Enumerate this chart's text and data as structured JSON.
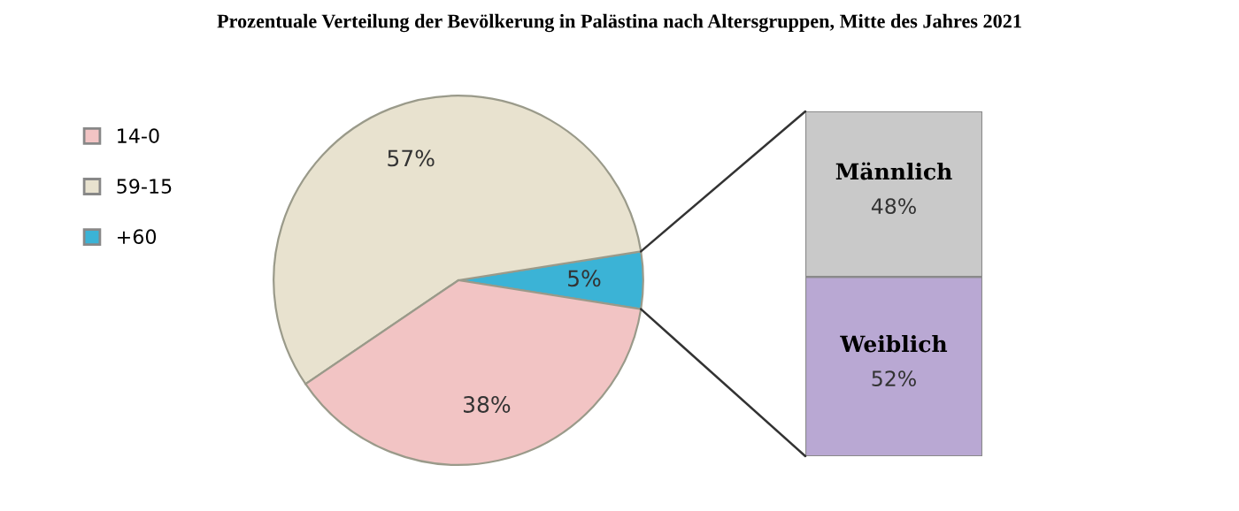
{
  "chart_data": [
    {
      "type": "pie",
      "title": "Prozentuale Verteilung der Bevölkerung in Palästina nach Altersgruppen, Mitte des Jahres 2021",
      "categories": [
        "+60",
        "59-15",
        "14-0"
      ],
      "values": [
        5,
        57,
        38
      ],
      "colors": [
        "#3bb3d6",
        "#e8e2cf",
        "#f2c4c4"
      ],
      "value_labels": [
        "5%",
        "57%",
        "38%"
      ],
      "legend": "left"
    },
    {
      "type": "bar",
      "stacked": true,
      "categories": [
        null
      ],
      "tick_labels": false,
      "series": [
        {
          "name": "Weiblich",
          "color": "#b9a8d3",
          "values": [
            52
          ],
          "value_labels": [
            "52%"
          ]
        },
        {
          "name": "Männlich",
          "color": "#c9c9c9",
          "values": [
            48
          ],
          "value_labels": [
            "48%"
          ]
        }
      ]
    }
  ]
}
